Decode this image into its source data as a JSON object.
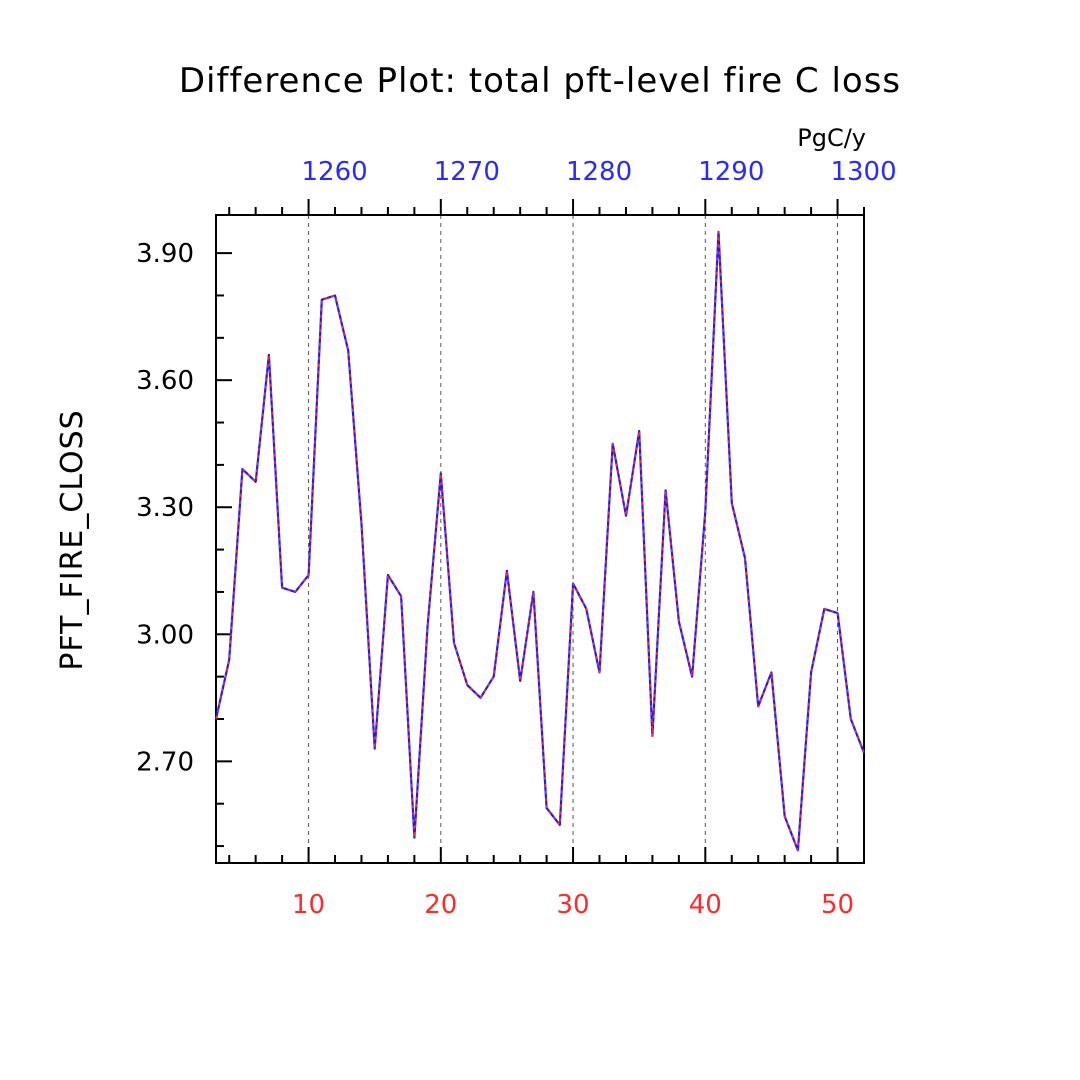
{
  "chart_data": {
    "type": "line",
    "title": "Difference Plot: total pft-level fire C loss",
    "ylabel": "PFT_FIRE_CLOSS",
    "units": "PgC/y",
    "xlim": [
      3,
      52
    ],
    "ylim": [
      2.46,
      3.99
    ],
    "x_ticks_bottom": [
      10,
      20,
      30,
      40,
      50
    ],
    "x_ticks_top": [
      1260,
      1270,
      1280,
      1290,
      1300
    ],
    "y_ticks": [
      "2.70",
      "3.00",
      "3.30",
      "3.60",
      "3.90"
    ],
    "grid": "dashed vertical lines at bottom-axis major ticks",
    "colors": {
      "line_solid": "#1a1aff",
      "line_dashed": "#ff2a2a",
      "bottom_axis": "#ff2a2a",
      "top_axis": "#2a2aff"
    },
    "series": [
      {
        "x": [
          3,
          4,
          5,
          6,
          7,
          8,
          9,
          10,
          11,
          12,
          13,
          14,
          15,
          16,
          17,
          18,
          19,
          20,
          21,
          22,
          23,
          24,
          25,
          26,
          27,
          28,
          29,
          30,
          31,
          32,
          33,
          34,
          35,
          36,
          37,
          38,
          39,
          40,
          41,
          42,
          43,
          44,
          45,
          46,
          47,
          48,
          49,
          50,
          51,
          52
        ],
        "values": [
          2.8,
          2.94,
          3.39,
          3.36,
          3.66,
          3.11,
          3.1,
          3.14,
          3.79,
          3.8,
          3.67,
          3.26,
          2.73,
          3.14,
          3.09,
          2.52,
          3.02,
          3.38,
          2.98,
          2.88,
          2.85,
          2.9,
          3.15,
          2.89,
          3.1,
          2.59,
          2.55,
          3.12,
          3.06,
          2.91,
          3.45,
          3.28,
          3.48,
          2.76,
          3.34,
          3.03,
          2.9,
          3.29,
          3.95,
          3.31,
          3.18,
          2.83,
          2.91,
          2.57,
          2.49,
          2.91,
          3.06,
          3.05,
          2.8,
          2.72
        ]
      }
    ]
  }
}
